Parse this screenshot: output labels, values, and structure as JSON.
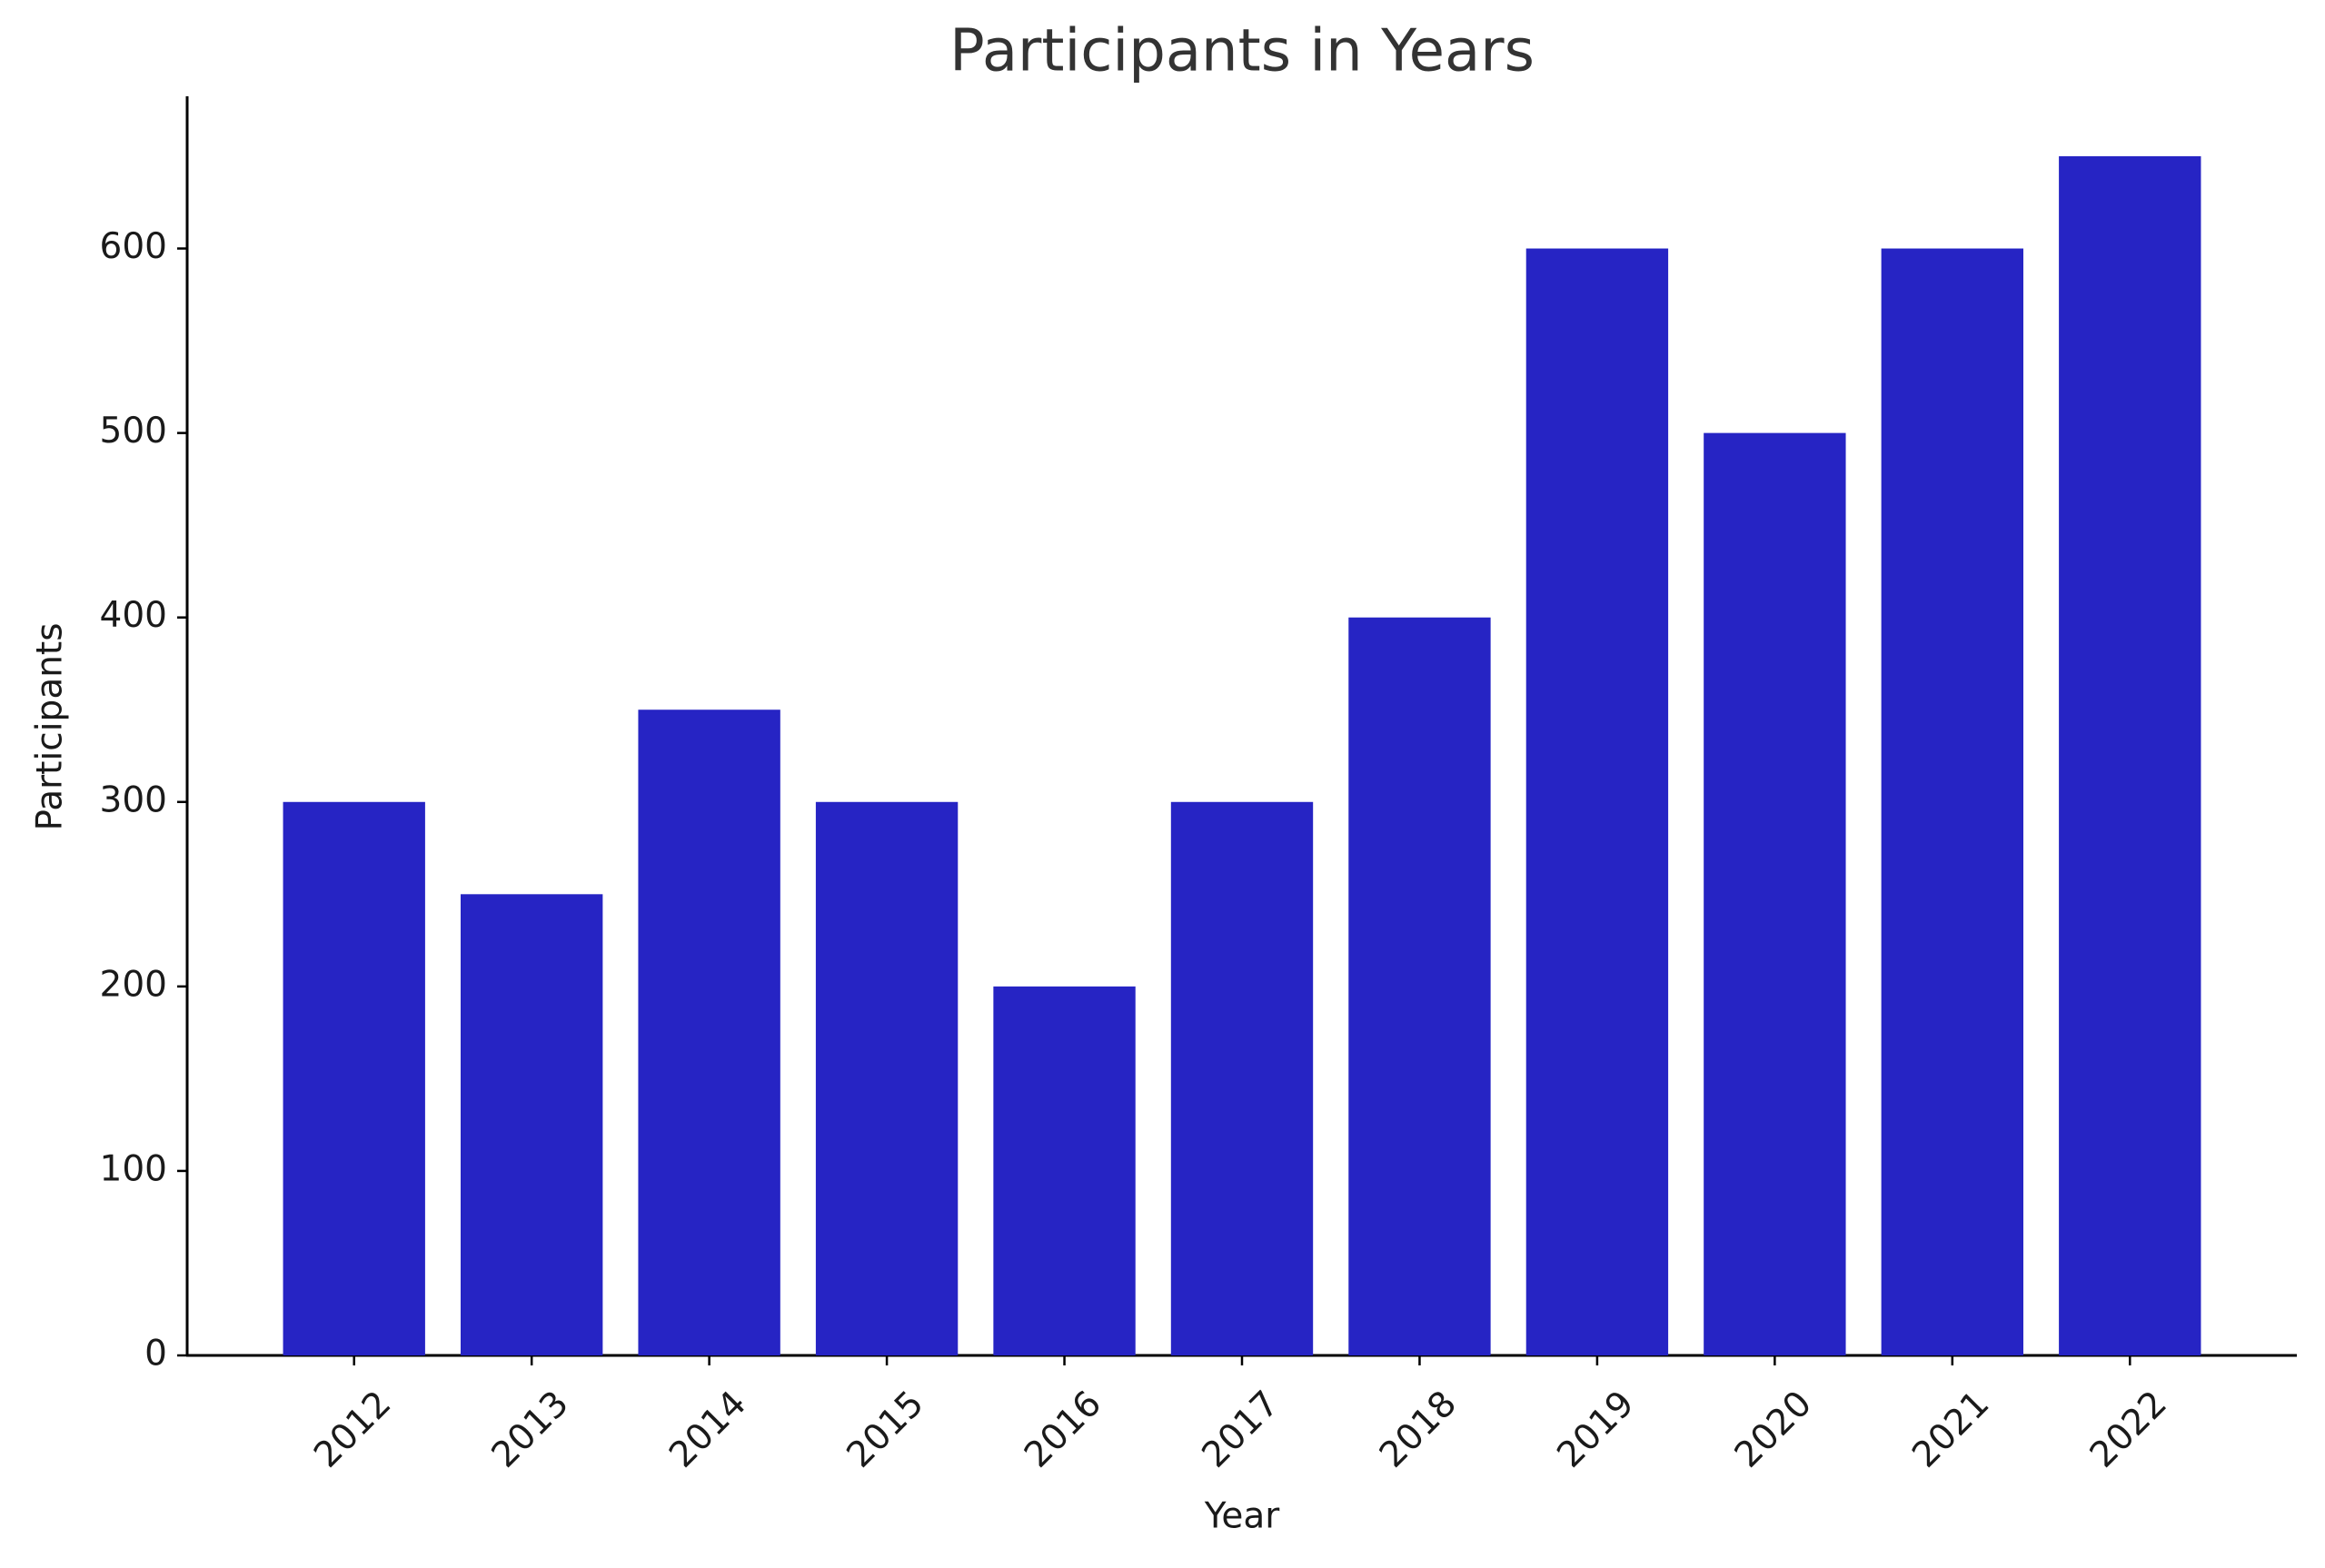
{
  "chart_data": {
    "type": "bar",
    "title": "Participants in Years",
    "x_label": "Year",
    "y_label": "Participants",
    "categories": [
      "2012",
      "2013",
      "2014",
      "2015",
      "2016",
      "2017",
      "2018",
      "2019",
      "2020",
      "2021",
      "2022"
    ],
    "values": [
      300,
      250,
      350,
      300,
      200,
      300,
      400,
      600,
      500,
      600,
      650
    ],
    "color": "#2624c4",
    "ylim": [
      0,
      682.5
    ],
    "yticks": [
      0,
      100,
      200,
      300,
      400,
      500,
      600
    ],
    "grid": false
  }
}
